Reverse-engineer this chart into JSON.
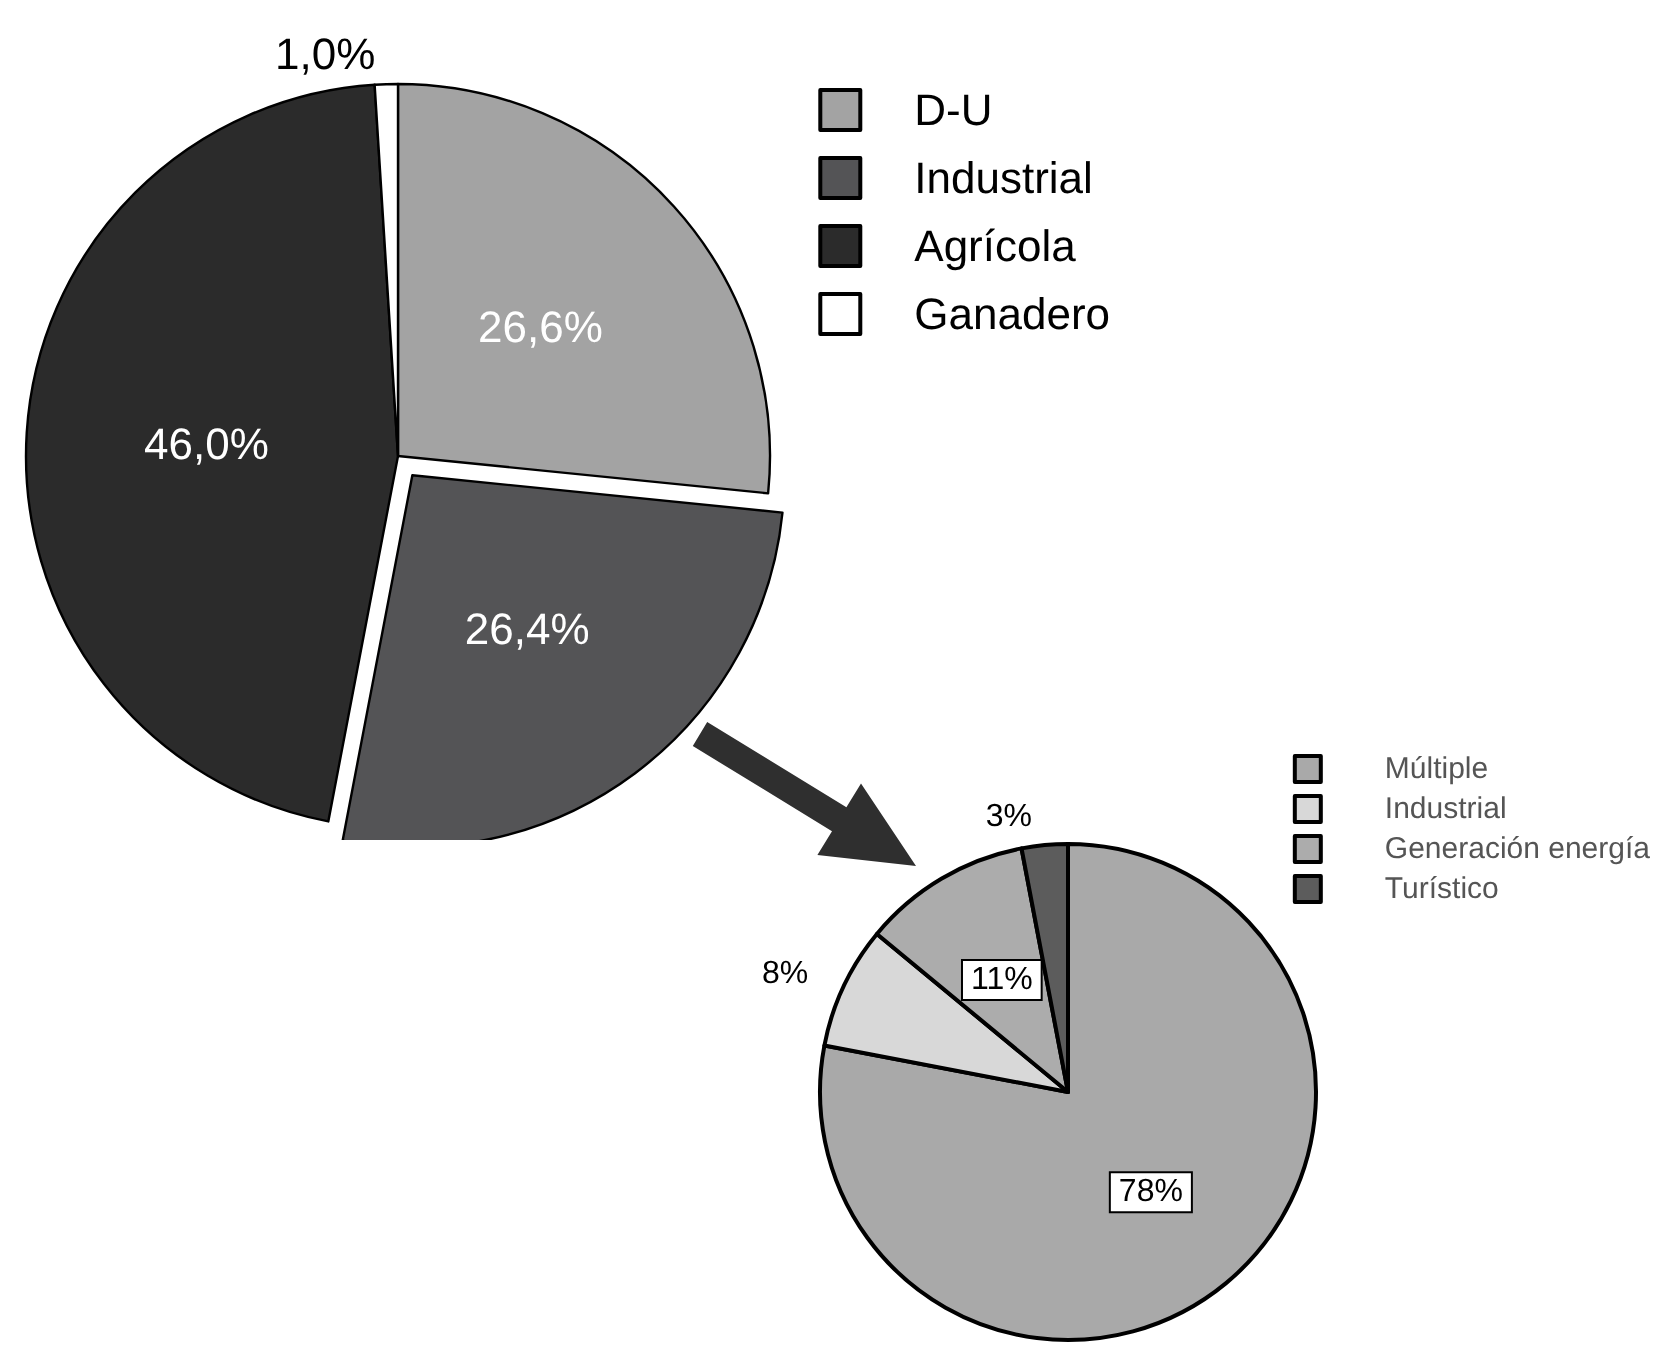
{
  "chart_data": [
    {
      "type": "pie",
      "categories": [
        "D-U",
        "Industrial",
        "Agrícola",
        "Ganadero"
      ],
      "values": [
        26.6,
        26.4,
        46.0,
        1.0
      ],
      "colors": [
        "#a3a3a3",
        "#545456",
        "#2b2b2b",
        "#ffffff"
      ],
      "value_labels": [
        "26,6%",
        "26,4%",
        "46,0%",
        "1,0%"
      ],
      "legend": "top right"
    },
    {
      "type": "pie",
      "categories": [
        "Múltiple",
        "Industrial",
        "Generación energía",
        "Turístico"
      ],
      "values": [
        78,
        8,
        11,
        3
      ],
      "colors": [
        "#a9a9a9",
        "#d8d8d8",
        "#acacac",
        "#5c5c5c"
      ],
      "value_labels": [
        "78%",
        "8%",
        "11%",
        "3%"
      ],
      "legend": "top right"
    }
  ]
}
